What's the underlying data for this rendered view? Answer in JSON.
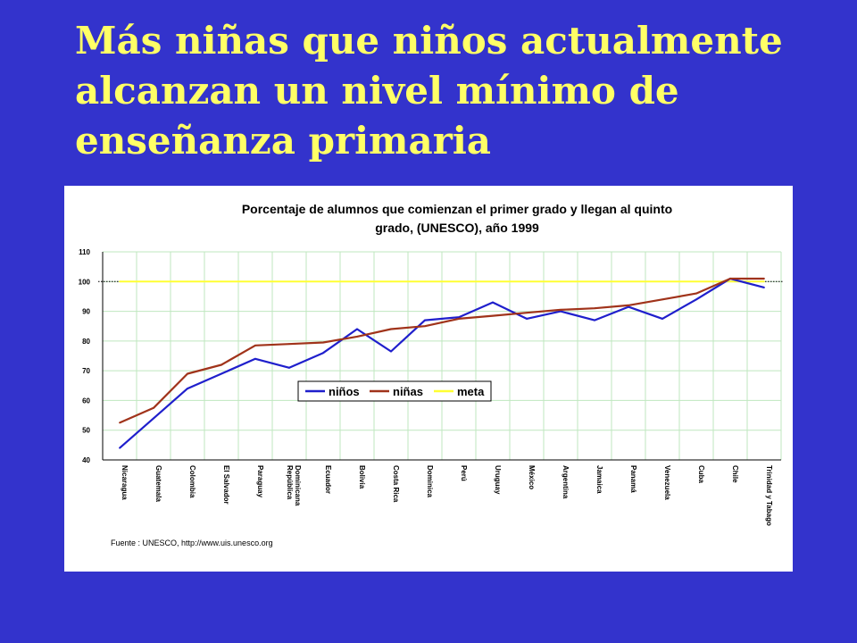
{
  "slide": {
    "title_lines": [
      "Más niñas que niños actualmente",
      "alcanzan un nivel mínimo de",
      "enseñanza primaria"
    ]
  },
  "colors": {
    "background": "#3333cc",
    "title": "#ffff66",
    "ninos": "#1f1fcc",
    "ninas": "#a0331a",
    "meta": "#ffff33",
    "grid": "#bfe7bf"
  },
  "chart_data": {
    "type": "line",
    "title_lines": [
      "Porcentaje de alumnos que comienzan el primer grado y llegan al quinto",
      "grado,  (UNESCO), año 1999"
    ],
    "categories": [
      "Nicaragua",
      "Guatemala",
      "Colombia",
      "El Salvador",
      "Paraguay",
      "República Dominicana",
      "Ecuador",
      "Bolivia",
      "Costa Rica",
      "Dominica",
      "Perú",
      "Uruguay",
      "México",
      "Argentina",
      "Jamaica",
      "Panamá",
      "Venezuela",
      "Cuba",
      "Chile",
      "Trinidad y Tabago"
    ],
    "y_ticks": [
      "110",
      "100",
      "90",
      "80",
      "70",
      "60",
      "50",
      "40"
    ],
    "ylim": [
      40,
      110
    ],
    "series": [
      {
        "name": "niños",
        "values": [
          44,
          54,
          64,
          69,
          74,
          71,
          76,
          84,
          76.5,
          87,
          88,
          93,
          87.5,
          90,
          87,
          91.5,
          87.5,
          94,
          101,
          98
        ]
      },
      {
        "name": "niñas",
        "values": [
          52.5,
          57.5,
          69,
          72,
          78.5,
          79,
          79.5,
          81.5,
          84,
          85,
          87.5,
          88.5,
          89.5,
          90.5,
          91,
          92,
          94,
          96,
          101,
          101
        ]
      },
      {
        "name": "meta",
        "values": [
          100,
          100,
          100,
          100,
          100,
          100,
          100,
          100,
          100,
          100,
          100,
          100,
          100,
          100,
          100,
          100,
          100,
          100,
          100,
          100
        ]
      }
    ],
    "legend": {
      "placement": "center-left",
      "labels": [
        "niños",
        "niñas",
        "meta"
      ]
    },
    "grid": true,
    "source": "Fuente : UNESCO, http://www.uis.unesco.org"
  }
}
